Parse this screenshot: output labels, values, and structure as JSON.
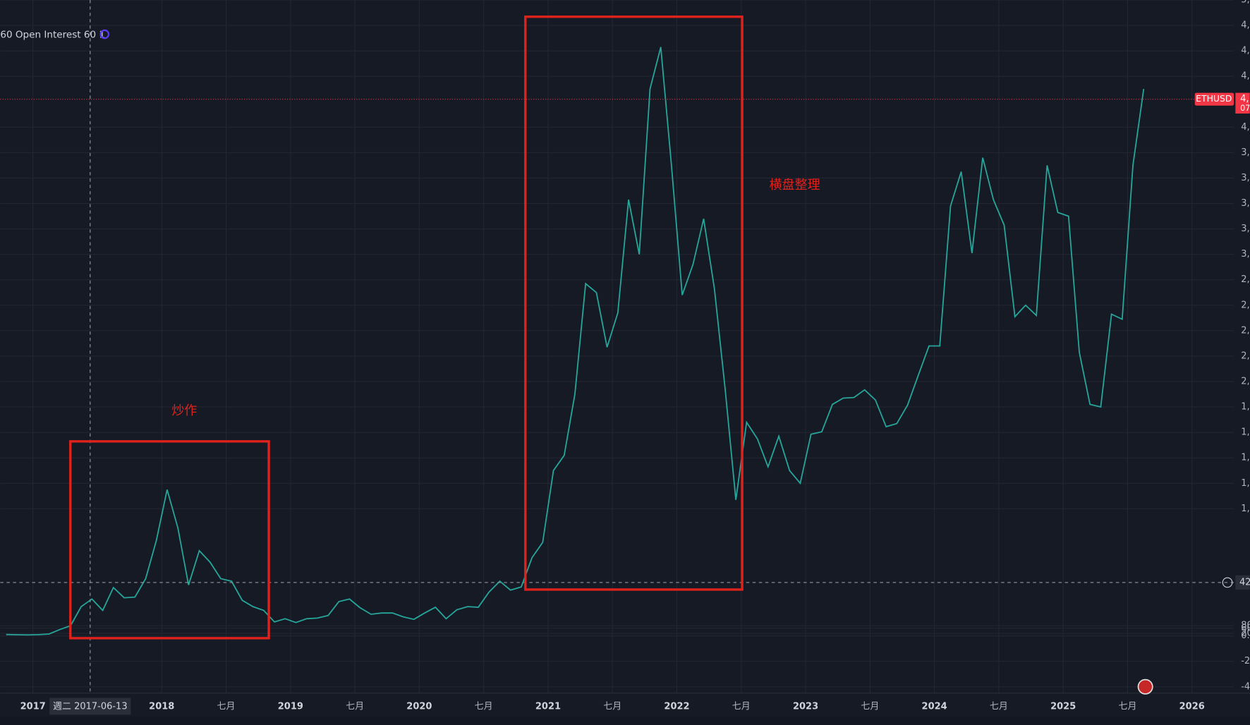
{
  "chart_data": {
    "type": "line",
    "symbol": "ETHUSD",
    "indicator": "60 Open Interest 60 1",
    "annotations": [
      {
        "text": "炒作"
      },
      {
        "text": "横盘整理"
      }
    ],
    "crosshair": {
      "date_label": "週二 2017-06-13",
      "price": {
        "value": 420,
        "label": "42"
      }
    },
    "last_price": {
      "value": 4220,
      "label": "4,",
      "countdown": "07"
    },
    "color": "#26a69a",
    "x": [
      "2016-10",
      "2016-11",
      "2016-12",
      "2017-01",
      "2017-02",
      "2017-03",
      "2017-04",
      "2017-05",
      "2017-06",
      "2017-07",
      "2017-08",
      "2017-09",
      "2017-10",
      "2017-11",
      "2017-12",
      "2018-01",
      "2018-02",
      "2018-03",
      "2018-04",
      "2018-05",
      "2018-06",
      "2018-07",
      "2018-08",
      "2018-09",
      "2018-10",
      "2018-11",
      "2018-12",
      "2019-01",
      "2019-02",
      "2019-03",
      "2019-04",
      "2019-05",
      "2019-06",
      "2019-07",
      "2019-08",
      "2019-09",
      "2019-10",
      "2019-11",
      "2019-12",
      "2020-01",
      "2020-02",
      "2020-03",
      "2020-04",
      "2020-05",
      "2020-06",
      "2020-07",
      "2020-08",
      "2020-09",
      "2020-10",
      "2020-11",
      "2020-12",
      "2021-01",
      "2021-02",
      "2021-03",
      "2021-04",
      "2021-05",
      "2021-06",
      "2021-07",
      "2021-08",
      "2021-09",
      "2021-10",
      "2021-11",
      "2021-12",
      "2022-01",
      "2022-02",
      "2022-03",
      "2022-04",
      "2022-05",
      "2022-06",
      "2022-07",
      "2022-08",
      "2022-09",
      "2022-10",
      "2022-11",
      "2022-12",
      "2023-01",
      "2023-02",
      "2023-03",
      "2023-04",
      "2023-05",
      "2023-06",
      "2023-07",
      "2023-08",
      "2023-09",
      "2023-10",
      "2023-11",
      "2023-12",
      "2024-01",
      "2024-02",
      "2024-03",
      "2024-04",
      "2024-05",
      "2024-06",
      "2024-07",
      "2024-08",
      "2024-09",
      "2024-10",
      "2024-11",
      "2024-12",
      "2025-01",
      "2025-02",
      "2025-03",
      "2025-04",
      "2025-05",
      "2025-06",
      "2025-07",
      "2025-08"
    ],
    "values": [
      11,
      9,
      8,
      10,
      15,
      50,
      80,
      230,
      290,
      200,
      380,
      300,
      305,
      450,
      750,
      1150,
      850,
      400,
      670,
      580,
      450,
      430,
      280,
      230,
      200,
      110,
      135,
      105,
      135,
      140,
      160,
      270,
      290,
      220,
      170,
      180,
      180,
      150,
      130,
      180,
      225,
      135,
      205,
      230,
      225,
      345,
      430,
      360,
      385,
      615,
      735,
      1300,
      1420,
      1900,
      2770,
      2700,
      2270,
      2540,
      3430,
      3000,
      4300,
      4630,
      3700,
      2680,
      2920,
      3280,
      2730,
      1940,
      1070,
      1680,
      1550,
      1330,
      1570,
      1300,
      1200,
      1585,
      1605,
      1820,
      1870,
      1875,
      1935,
      1855,
      1645,
      1670,
      1815,
      2050,
      2280,
      2280,
      3380,
      3650,
      3010,
      3760,
      3430,
      3230,
      2510,
      2600,
      2520,
      3700,
      3330,
      3300,
      2230,
      1820,
      1800,
      2530,
      2490,
      3700,
      4300
    ],
    "xlim": [
      2016.746,
      2026.325
    ],
    "xticks": [
      2017,
      {
        "value": 2017.5,
        "label": "週二 2017-06-13"
      },
      2018,
      {
        "value": 2018.5,
        "label": "七月"
      },
      2019,
      {
        "value": 2019.5,
        "label": "七月"
      },
      2020,
      {
        "value": 2020.5,
        "label": "七月"
      },
      2021,
      {
        "value": 2021.5,
        "label": "七月"
      },
      2022,
      {
        "value": 2022.5,
        "label": "七月"
      },
      2023,
      {
        "value": 2023.5,
        "label": "七月"
      },
      2024,
      {
        "value": 2024.5,
        "label": "七月"
      },
      2025,
      {
        "value": 2025.5,
        "label": "七月"
      },
      2026
    ],
    "ylim": [
      -450,
      5000
    ],
    "yticks": [
      {
        "value": -400,
        "label": "-4"
      },
      {
        "value": -200,
        "label": "-2"
      },
      {
        "value": 0,
        "label": "0."
      },
      20,
      60,
      80,
      {
        "value": 1000,
        "label": "1,"
      },
      {
        "value": 1200,
        "label": "1,"
      },
      {
        "value": 1400,
        "label": "1,"
      },
      {
        "value": 1600,
        "label": "1,"
      },
      {
        "value": 1800,
        "label": "1,"
      },
      {
        "value": 2000,
        "label": "2,"
      },
      {
        "value": 2200,
        "label": "2,"
      },
      {
        "value": 2400,
        "label": "2,"
      },
      {
        "value": 2600,
        "label": "2,"
      },
      {
        "value": 2800,
        "label": "2,"
      },
      {
        "value": 3000,
        "label": "3,"
      },
      {
        "value": 3200,
        "label": "3,"
      },
      {
        "value": 3400,
        "label": "3,"
      },
      {
        "value": 3600,
        "label": "3,"
      },
      {
        "value": 3800,
        "label": "3,"
      },
      {
        "value": 4000,
        "label": "4,"
      },
      {
        "value": 4400,
        "label": "4,"
      },
      {
        "value": 4600,
        "label": "4,"
      },
      {
        "value": 4800,
        "label": "4,"
      },
      {
        "value": 5000,
        "label": "5,"
      }
    ],
    "grid": true
  }
}
